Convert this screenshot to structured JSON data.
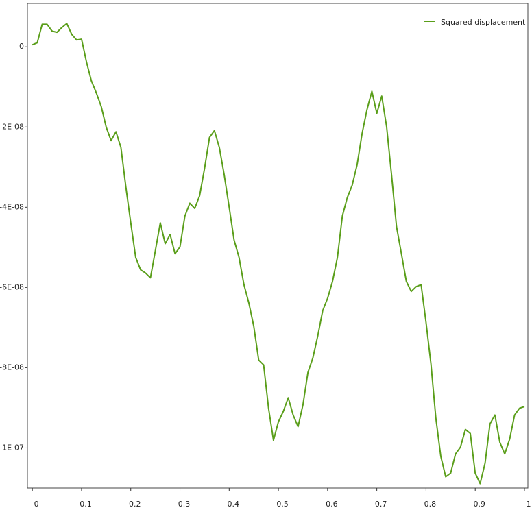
{
  "chart_data": {
    "type": "line",
    "x": [
      0,
      0.01,
      0.02,
      0.03,
      0.04,
      0.05,
      0.06,
      0.07,
      0.08,
      0.09,
      0.1,
      0.11,
      0.12,
      0.13,
      0.14,
      0.15,
      0.16,
      0.17,
      0.18,
      0.19,
      0.2,
      0.21,
      0.22,
      0.23,
      0.24,
      0.25,
      0.26,
      0.27,
      0.28,
      0.29,
      0.3,
      0.31,
      0.32,
      0.33,
      0.34,
      0.35,
      0.36,
      0.37,
      0.38,
      0.39,
      0.4,
      0.41,
      0.42,
      0.43,
      0.44,
      0.45,
      0.46,
      0.47,
      0.48,
      0.49,
      0.5,
      0.51,
      0.52,
      0.53,
      0.54,
      0.55,
      0.56,
      0.57,
      0.58,
      0.59,
      0.6,
      0.61,
      0.62,
      0.63,
      0.64,
      0.65,
      0.66,
      0.67,
      0.68,
      0.69,
      0.7,
      0.71,
      0.72,
      0.73,
      0.74,
      0.75,
      0.76,
      0.77,
      0.78,
      0.79,
      0.8,
      0.81,
      0.82,
      0.83,
      0.84,
      0.85,
      0.86,
      0.87,
      0.88,
      0.89,
      0.9,
      0.91,
      0.92,
      0.93,
      0.94,
      0.95,
      0.96,
      0.97,
      0.98,
      0.99,
      1
    ],
    "series": [
      {
        "name": "Squared displacement",
        "color": "#5a9e1a",
        "values": [
          5e-10,
          1e-09,
          5.6e-09,
          5.6e-09,
          3.9e-09,
          3.6e-09,
          4.8e-09,
          5.8e-09,
          3.1e-09,
          1.7e-09,
          1.9e-09,
          -3.8e-09,
          -8.5e-09,
          -1.15e-08,
          -1.49e-08,
          -2e-08,
          -2.34e-08,
          -2.12e-08,
          -2.51e-08,
          -3.49e-08,
          -4.39e-08,
          -5.25e-08,
          -5.56e-08,
          -5.64e-08,
          -5.76e-08,
          -5.08e-08,
          -4.39e-08,
          -4.91e-08,
          -4.68e-08,
          -5.16e-08,
          -4.99e-08,
          -4.22e-08,
          -3.9e-08,
          -4.03e-08,
          -3.71e-08,
          -3.03e-08,
          -2.26e-08,
          -2.09e-08,
          -2.51e-08,
          -3.2e-08,
          -4e-08,
          -4.82e-08,
          -5.25e-08,
          -5.93e-08,
          -6.39e-08,
          -6.97e-08,
          -7.81e-08,
          -7.93e-08,
          -9.01e-08,
          -9.81e-08,
          -9.35e-08,
          -9.09e-08,
          -8.75e-08,
          -9.18e-08,
          -9.47e-08,
          -8.92e-08,
          -8.12e-08,
          -7.76e-08,
          -7.21e-08,
          -6.58e-08,
          -6.27e-08,
          -5.85e-08,
          -5.25e-08,
          -4.22e-08,
          -3.76e-08,
          -3.45e-08,
          -2.94e-08,
          -2.17e-08,
          -1.57e-08,
          -1.11e-08,
          -1.66e-08,
          -1.23e-08,
          -2e-08,
          -3.2e-08,
          -4.48e-08,
          -5.16e-08,
          -5.85e-08,
          -6.1e-08,
          -5.98e-08,
          -5.93e-08,
          -6.87e-08,
          -7.9e-08,
          -9.26e-08,
          -1.021e-07,
          -1.072e-07,
          -1.063e-07,
          -1.015e-07,
          -9.98e-08,
          -9.54e-08,
          -9.64e-08,
          -1.063e-07,
          -1.089e-07,
          -1.038e-07,
          -9.4e-08,
          -9.18e-08,
          -9.86e-08,
          -1.015e-07,
          -9.78e-08,
          -9.18e-08,
          -9.01e-08,
          -8.97e-08
        ]
      }
    ],
    "xlim": [
      -0.01,
      1.007
    ],
    "xticks": [
      0,
      0.1,
      0.2,
      0.3,
      0.4,
      0.5,
      0.6,
      0.7,
      0.8,
      0.9,
      1
    ],
    "ylim": [
      -1.1e-07,
      1.08e-08
    ],
    "yticks": [
      0,
      {
        "value": -2e-08,
        "label": "-2E-08"
      },
      {
        "value": -4e-08,
        "label": "-4E-08"
      },
      {
        "value": -6e-08,
        "label": "-6E-08"
      },
      {
        "value": -8e-08,
        "label": "-8E-08"
      },
      {
        "value": -1e-07,
        "label": "-1E-07"
      }
    ],
    "grid": false,
    "legend": "top-right"
  }
}
